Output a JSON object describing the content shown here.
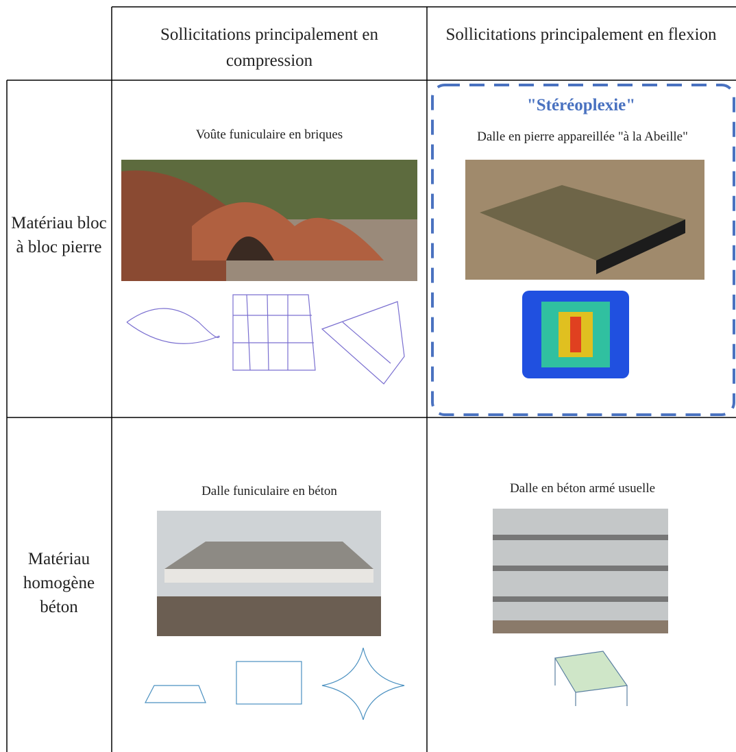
{
  "table": {
    "header": [
      "Sollicitations principalement en compression",
      "Sollicitations principalement en flexion"
    ],
    "rows": [
      {
        "label": "Matériau bloc à bloc pierre",
        "cells": [
          {
            "caption": "Voûte funiculaire en briques"
          },
          {
            "highlight": "\"Stéréoplexie\"",
            "caption": "Dalle en pierre appareillée \"à la Abeille\""
          }
        ]
      },
      {
        "label": "Matériau homogène béton",
        "cells": [
          {
            "caption": "Dalle funiculaire en béton"
          },
          {
            "caption": "Dalle en béton armé usuelle"
          }
        ]
      }
    ]
  }
}
